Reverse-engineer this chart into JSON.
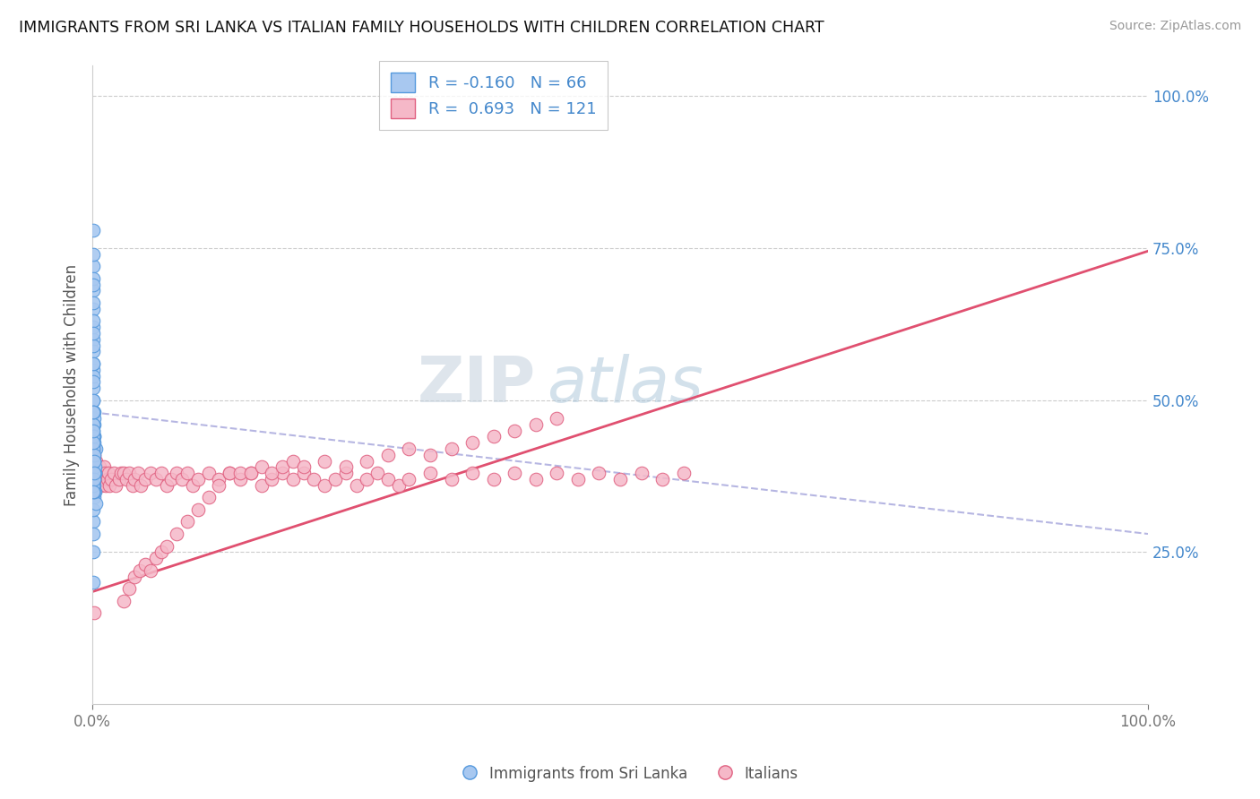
{
  "title": "IMMIGRANTS FROM SRI LANKA VS ITALIAN FAMILY HOUSEHOLDS WITH CHILDREN CORRELATION CHART",
  "source": "Source: ZipAtlas.com",
  "ylabel": "Family Households with Children",
  "legend_blue_r": "-0.160",
  "legend_blue_n": "66",
  "legend_pink_r": "0.693",
  "legend_pink_n": "121",
  "legend_label_blue": "Immigrants from Sri Lanka",
  "legend_label_pink": "Italians",
  "right_ytick_labels": [
    "100.0%",
    "75.0%",
    "50.0%",
    "25.0%"
  ],
  "right_ytick_values": [
    1.0,
    0.75,
    0.5,
    0.25
  ],
  "watermark_zip": "ZIP",
  "watermark_atlas": "atlas",
  "background_color": "#ffffff",
  "grid_color": "#cccccc",
  "blue_dot_color": "#a8c8f0",
  "blue_dot_edge": "#5599dd",
  "pink_dot_color": "#f5b8c8",
  "pink_dot_edge": "#e06080",
  "blue_line_color": "#aaaadd",
  "pink_line_color": "#e05070",
  "blue_line_intercept": 0.48,
  "blue_line_slope": -0.2,
  "pink_line_intercept": 0.185,
  "pink_line_slope": 0.56,
  "blue_scatter_x": [
    0.0005,
    0.001,
    0.0008,
    0.0012,
    0.001,
    0.0006,
    0.0015,
    0.001,
    0.0009,
    0.002,
    0.0005,
    0.0012,
    0.0025,
    0.0008,
    0.0018,
    0.0004,
    0.003,
    0.0012,
    0.0008,
    0.002,
    0.0004,
    0.0008,
    0.001,
    0.0025,
    0.0015,
    0.0008,
    0.0004,
    0.001,
    0.002,
    0.003,
    0.0008,
    0.0015,
    0.0004,
    0.001,
    0.0008,
    0.0025,
    0.0004,
    0.0015,
    0.001,
    0.0008,
    0.0004,
    0.002,
    0.001,
    0.0008,
    0.0015,
    0.0004,
    0.0008,
    0.001,
    0.0025,
    0.0004,
    0.0008,
    0.0015,
    0.001,
    0.0004,
    0.002,
    0.0008,
    0.001,
    0.0004,
    0.0015,
    0.0008,
    0.001,
    0.0004,
    0.0008,
    0.002,
    0.001,
    0.0004
  ],
  "blue_scatter_y": [
    0.45,
    0.5,
    0.38,
    0.42,
    0.48,
    0.3,
    0.44,
    0.36,
    0.52,
    0.4,
    0.55,
    0.34,
    0.38,
    0.6,
    0.46,
    0.2,
    0.42,
    0.48,
    0.56,
    0.37,
    0.62,
    0.44,
    0.39,
    0.35,
    0.47,
    0.58,
    0.32,
    0.41,
    0.36,
    0.33,
    0.65,
    0.43,
    0.28,
    0.5,
    0.54,
    0.38,
    0.68,
    0.4,
    0.46,
    0.59,
    0.72,
    0.35,
    0.42,
    0.63,
    0.44,
    0.48,
    0.7,
    0.36,
    0.39,
    0.66,
    0.74,
    0.41,
    0.44,
    0.78,
    0.37,
    0.69,
    0.43,
    0.56,
    0.4,
    0.61,
    0.45,
    0.35,
    0.53,
    0.38,
    0.48,
    0.25
  ],
  "pink_scatter_x": [
    0.0005,
    0.001,
    0.0008,
    0.0015,
    0.001,
    0.0006,
    0.002,
    0.0012,
    0.001,
    0.0008,
    0.0015,
    0.0008,
    0.002,
    0.0012,
    0.0025,
    0.003,
    0.0035,
    0.004,
    0.005,
    0.006,
    0.007,
    0.008,
    0.009,
    0.01,
    0.011,
    0.012,
    0.013,
    0.014,
    0.015,
    0.016,
    0.018,
    0.02,
    0.022,
    0.025,
    0.027,
    0.03,
    0.032,
    0.035,
    0.038,
    0.04,
    0.043,
    0.046,
    0.05,
    0.055,
    0.06,
    0.065,
    0.07,
    0.075,
    0.08,
    0.085,
    0.09,
    0.095,
    0.1,
    0.11,
    0.12,
    0.13,
    0.14,
    0.15,
    0.16,
    0.17,
    0.18,
    0.19,
    0.2,
    0.21,
    0.22,
    0.23,
    0.24,
    0.25,
    0.26,
    0.27,
    0.28,
    0.29,
    0.3,
    0.32,
    0.34,
    0.36,
    0.38,
    0.4,
    0.42,
    0.44,
    0.46,
    0.48,
    0.5,
    0.52,
    0.54,
    0.56,
    0.03,
    0.035,
    0.04,
    0.045,
    0.05,
    0.055,
    0.06,
    0.065,
    0.07,
    0.08,
    0.09,
    0.1,
    0.11,
    0.12,
    0.13,
    0.14,
    0.15,
    0.16,
    0.17,
    0.18,
    0.19,
    0.2,
    0.22,
    0.24,
    0.26,
    0.28,
    0.3,
    0.32,
    0.34,
    0.36,
    0.38,
    0.4,
    0.42,
    0.44,
    0.002
  ],
  "pink_scatter_y": [
    0.38,
    0.4,
    0.36,
    0.42,
    0.35,
    0.39,
    0.41,
    0.37,
    0.43,
    0.38,
    0.36,
    0.4,
    0.42,
    0.38,
    0.39,
    0.37,
    0.4,
    0.36,
    0.38,
    0.37,
    0.39,
    0.36,
    0.38,
    0.37,
    0.39,
    0.38,
    0.36,
    0.37,
    0.38,
    0.36,
    0.37,
    0.38,
    0.36,
    0.37,
    0.38,
    0.38,
    0.37,
    0.38,
    0.36,
    0.37,
    0.38,
    0.36,
    0.37,
    0.38,
    0.37,
    0.38,
    0.36,
    0.37,
    0.38,
    0.37,
    0.38,
    0.36,
    0.37,
    0.38,
    0.37,
    0.38,
    0.37,
    0.38,
    0.36,
    0.37,
    0.38,
    0.37,
    0.38,
    0.37,
    0.36,
    0.37,
    0.38,
    0.36,
    0.37,
    0.38,
    0.37,
    0.36,
    0.37,
    0.38,
    0.37,
    0.38,
    0.37,
    0.38,
    0.37,
    0.38,
    0.37,
    0.38,
    0.37,
    0.38,
    0.37,
    0.38,
    0.17,
    0.19,
    0.21,
    0.22,
    0.23,
    0.22,
    0.24,
    0.25,
    0.26,
    0.28,
    0.3,
    0.32,
    0.34,
    0.36,
    0.38,
    0.38,
    0.38,
    0.39,
    0.38,
    0.39,
    0.4,
    0.39,
    0.4,
    0.39,
    0.4,
    0.41,
    0.42,
    0.41,
    0.42,
    0.43,
    0.44,
    0.45,
    0.46,
    0.47,
    0.15
  ]
}
